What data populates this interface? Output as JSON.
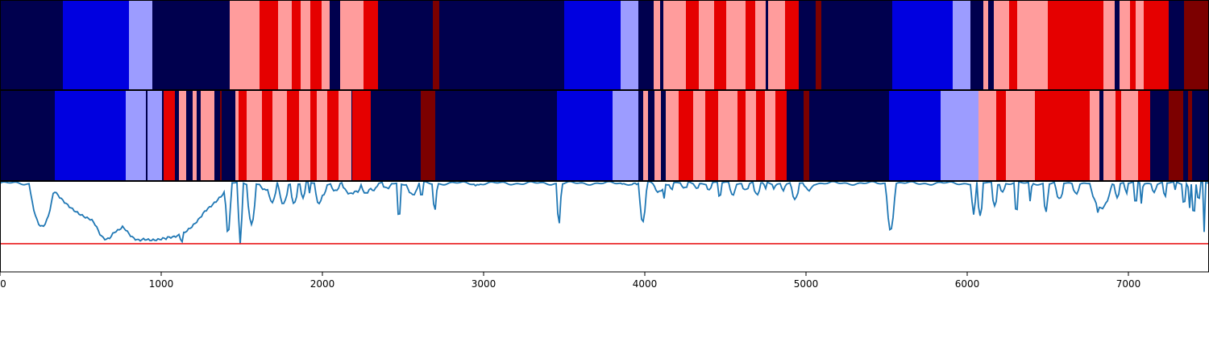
{
  "chart_data": [
    {
      "type": "heatmap",
      "xlim": [
        0,
        7500
      ],
      "segments": [
        {
          "start": 0,
          "end": 390,
          "class": "navy"
        },
        {
          "start": 390,
          "end": 800,
          "class": "blue"
        },
        {
          "start": 800,
          "end": 945,
          "class": "lightblue"
        },
        {
          "start": 945,
          "end": 1425,
          "class": "navy"
        },
        {
          "start": 1425,
          "end": 1610,
          "class": "pink"
        },
        {
          "start": 1610,
          "end": 1725,
          "class": "red"
        },
        {
          "start": 1725,
          "end": 1810,
          "class": "pink"
        },
        {
          "start": 1810,
          "end": 1865,
          "class": "red"
        },
        {
          "start": 1865,
          "end": 1925,
          "class": "pink"
        },
        {
          "start": 1925,
          "end": 1995,
          "class": "red"
        },
        {
          "start": 1995,
          "end": 2045,
          "class": "pink"
        },
        {
          "start": 2045,
          "end": 2110,
          "class": "navy"
        },
        {
          "start": 2110,
          "end": 2255,
          "class": "pink"
        },
        {
          "start": 2255,
          "end": 2345,
          "class": "red"
        },
        {
          "start": 2345,
          "end": 2685,
          "class": "navy"
        },
        {
          "start": 2685,
          "end": 2725,
          "class": "darkred"
        },
        {
          "start": 2725,
          "end": 3500,
          "class": "navy"
        },
        {
          "start": 3500,
          "end": 3850,
          "class": "blue"
        },
        {
          "start": 3850,
          "end": 3960,
          "class": "lightblue"
        },
        {
          "start": 3960,
          "end": 4055,
          "class": "navy"
        },
        {
          "start": 4055,
          "end": 4095,
          "class": "pink"
        },
        {
          "start": 4095,
          "end": 4115,
          "class": "navy"
        },
        {
          "start": 4115,
          "end": 4255,
          "class": "pink"
        },
        {
          "start": 4255,
          "end": 4335,
          "class": "red"
        },
        {
          "start": 4335,
          "end": 4430,
          "class": "pink"
        },
        {
          "start": 4430,
          "end": 4505,
          "class": "red"
        },
        {
          "start": 4505,
          "end": 4625,
          "class": "pink"
        },
        {
          "start": 4625,
          "end": 4685,
          "class": "red"
        },
        {
          "start": 4685,
          "end": 4750,
          "class": "pink"
        },
        {
          "start": 4750,
          "end": 4765,
          "class": "navy"
        },
        {
          "start": 4765,
          "end": 4870,
          "class": "pink"
        },
        {
          "start": 4870,
          "end": 4955,
          "class": "red"
        },
        {
          "start": 4955,
          "end": 5060,
          "class": "navy"
        },
        {
          "start": 5060,
          "end": 5095,
          "class": "darkred"
        },
        {
          "start": 5095,
          "end": 5535,
          "class": "navy"
        },
        {
          "start": 5535,
          "end": 5910,
          "class": "blue"
        },
        {
          "start": 5910,
          "end": 6020,
          "class": "lightblue"
        },
        {
          "start": 6020,
          "end": 6100,
          "class": "navy"
        },
        {
          "start": 6100,
          "end": 6130,
          "class": "pink"
        },
        {
          "start": 6130,
          "end": 6165,
          "class": "navy"
        },
        {
          "start": 6165,
          "end": 6260,
          "class": "pink"
        },
        {
          "start": 6260,
          "end": 6310,
          "class": "red"
        },
        {
          "start": 6310,
          "end": 6500,
          "class": "pink"
        },
        {
          "start": 6500,
          "end": 6845,
          "class": "red"
        },
        {
          "start": 6845,
          "end": 6915,
          "class": "pink"
        },
        {
          "start": 6915,
          "end": 6945,
          "class": "navy"
        },
        {
          "start": 6945,
          "end": 7010,
          "class": "pink"
        },
        {
          "start": 7010,
          "end": 7045,
          "class": "red"
        },
        {
          "start": 7045,
          "end": 7095,
          "class": "pink"
        },
        {
          "start": 7095,
          "end": 7250,
          "class": "red"
        },
        {
          "start": 7250,
          "end": 7345,
          "class": "navy"
        },
        {
          "start": 7345,
          "end": 7500,
          "class": "darkred"
        }
      ]
    },
    {
      "type": "heatmap",
      "xlim": [
        0,
        7500
      ],
      "segments": [
        {
          "start": 0,
          "end": 340,
          "class": "navy"
        },
        {
          "start": 340,
          "end": 780,
          "class": "blue"
        },
        {
          "start": 780,
          "end": 905,
          "class": "lightblue"
        },
        {
          "start": 905,
          "end": 915,
          "class": "navy"
        },
        {
          "start": 915,
          "end": 1005,
          "class": "lightblue"
        },
        {
          "start": 1005,
          "end": 1015,
          "class": "navy"
        },
        {
          "start": 1015,
          "end": 1085,
          "class": "red"
        },
        {
          "start": 1085,
          "end": 1110,
          "class": "navy"
        },
        {
          "start": 1110,
          "end": 1155,
          "class": "pink"
        },
        {
          "start": 1155,
          "end": 1195,
          "class": "navy"
        },
        {
          "start": 1195,
          "end": 1220,
          "class": "pink"
        },
        {
          "start": 1220,
          "end": 1245,
          "class": "navy"
        },
        {
          "start": 1245,
          "end": 1265,
          "class": "pink"
        },
        {
          "start": 1265,
          "end": 1330,
          "class": "pink"
        },
        {
          "start": 1330,
          "end": 1365,
          "class": "navy"
        },
        {
          "start": 1365,
          "end": 1375,
          "class": "darkred"
        },
        {
          "start": 1375,
          "end": 1450,
          "class": "navy"
        },
        {
          "start": 1450,
          "end": 1460,
          "class": "navy"
        },
        {
          "start": 1460,
          "end": 1480,
          "class": "pink"
        },
        {
          "start": 1480,
          "end": 1530,
          "class": "red"
        },
        {
          "start": 1530,
          "end": 1625,
          "class": "pink"
        },
        {
          "start": 1625,
          "end": 1690,
          "class": "red"
        },
        {
          "start": 1690,
          "end": 1780,
          "class": "pink"
        },
        {
          "start": 1780,
          "end": 1855,
          "class": "red"
        },
        {
          "start": 1855,
          "end": 1925,
          "class": "pink"
        },
        {
          "start": 1925,
          "end": 1965,
          "class": "red"
        },
        {
          "start": 1965,
          "end": 2030,
          "class": "pink"
        },
        {
          "start": 2030,
          "end": 2100,
          "class": "red"
        },
        {
          "start": 2100,
          "end": 2180,
          "class": "pink"
        },
        {
          "start": 2180,
          "end": 2185,
          "class": "navy"
        },
        {
          "start": 2185,
          "end": 2300,
          "class": "red"
        },
        {
          "start": 2300,
          "end": 2610,
          "class": "navy"
        },
        {
          "start": 2610,
          "end": 2700,
          "class": "darkred"
        },
        {
          "start": 2700,
          "end": 3455,
          "class": "navy"
        },
        {
          "start": 3455,
          "end": 3800,
          "class": "blue"
        },
        {
          "start": 3800,
          "end": 3960,
          "class": "lightblue"
        },
        {
          "start": 3960,
          "end": 3990,
          "class": "navy"
        },
        {
          "start": 3990,
          "end": 4020,
          "class": "pink"
        },
        {
          "start": 4020,
          "end": 4060,
          "class": "navy"
        },
        {
          "start": 4060,
          "end": 4100,
          "class": "pink"
        },
        {
          "start": 4100,
          "end": 4130,
          "class": "navy"
        },
        {
          "start": 4130,
          "end": 4210,
          "class": "pink"
        },
        {
          "start": 4210,
          "end": 4300,
          "class": "red"
        },
        {
          "start": 4300,
          "end": 4375,
          "class": "pink"
        },
        {
          "start": 4375,
          "end": 4455,
          "class": "red"
        },
        {
          "start": 4455,
          "end": 4575,
          "class": "pink"
        },
        {
          "start": 4575,
          "end": 4625,
          "class": "red"
        },
        {
          "start": 4625,
          "end": 4690,
          "class": "pink"
        },
        {
          "start": 4690,
          "end": 4745,
          "class": "red"
        },
        {
          "start": 4745,
          "end": 4810,
          "class": "pink"
        },
        {
          "start": 4810,
          "end": 4880,
          "class": "red"
        },
        {
          "start": 4880,
          "end": 4985,
          "class": "navy"
        },
        {
          "start": 4985,
          "end": 5020,
          "class": "darkred"
        },
        {
          "start": 5020,
          "end": 5515,
          "class": "navy"
        },
        {
          "start": 5515,
          "end": 5835,
          "class": "blue"
        },
        {
          "start": 5835,
          "end": 6070,
          "class": "lightblue"
        },
        {
          "start": 6070,
          "end": 6180,
          "class": "pink"
        },
        {
          "start": 6180,
          "end": 6240,
          "class": "red"
        },
        {
          "start": 6240,
          "end": 6420,
          "class": "pink"
        },
        {
          "start": 6420,
          "end": 6760,
          "class": "red"
        },
        {
          "start": 6760,
          "end": 6820,
          "class": "pink"
        },
        {
          "start": 6820,
          "end": 6845,
          "class": "navy"
        },
        {
          "start": 6845,
          "end": 6920,
          "class": "pink"
        },
        {
          "start": 6920,
          "end": 6955,
          "class": "red"
        },
        {
          "start": 6955,
          "end": 7060,
          "class": "pink"
        },
        {
          "start": 7060,
          "end": 7135,
          "class": "red"
        },
        {
          "start": 7135,
          "end": 7250,
          "class": "navy"
        },
        {
          "start": 7250,
          "end": 7340,
          "class": "darkred"
        },
        {
          "start": 7340,
          "end": 7370,
          "class": "navy"
        },
        {
          "start": 7370,
          "end": 7395,
          "class": "darkred"
        },
        {
          "start": 7395,
          "end": 7500,
          "class": "navy"
        }
      ]
    },
    {
      "type": "line",
      "xlim": [
        0,
        7500
      ],
      "ylim": [
        0,
        1
      ],
      "threshold": 0.31,
      "x_ticks": [
        0,
        1000,
        2000,
        3000,
        4000,
        5000,
        6000,
        7000
      ],
      "x_tick_labels": [
        "0",
        "1000",
        "2000",
        "3000",
        "4000",
        "5000",
        "6000",
        "7000"
      ],
      "baseline": 0.975,
      "dips": [
        [
          180,
          340,
          0.5,
          15
        ],
        [
          530,
          790,
          0.36,
          40
        ],
        [
          790,
          900,
          0.45,
          8
        ],
        [
          830,
          300,
          0.82,
          20
        ],
        [
          905,
          460,
          0.43,
          30
        ],
        [
          980,
          1070,
          0.36,
          30
        ],
        [
          1005,
          300,
          0.55,
          25
        ],
        [
          1060,
          670,
          0.35,
          25
        ],
        [
          1095,
          1160,
          0.33,
          15
        ],
        [
          1130,
          750,
          0.45,
          20
        ],
        [
          1190,
          870,
          0.53,
          20
        ],
        [
          1230,
          570,
          0.45,
          15
        ],
        [
          1290,
          650,
          0.45,
          15
        ],
        [
          1330,
          560,
          0.35,
          15
        ],
        [
          1370,
          720,
          0.38,
          15
        ],
        [
          1400,
          1430,
          0.42,
          20
        ],
        [
          1440,
          600,
          0.5,
          15
        ],
        [
          1475,
          1505,
          0.3,
          10
        ],
        [
          1530,
          1590,
          0.53,
          8
        ],
        [
          1610,
          1680,
          0.9,
          8
        ],
        [
          1655,
          1720,
          0.77,
          8
        ],
        [
          1725,
          1790,
          0.75,
          8
        ],
        [
          1800,
          1850,
          0.75,
          8
        ],
        [
          1860,
          1900,
          0.82,
          8
        ],
        [
          1910,
          1930,
          0.86,
          8
        ],
        [
          1950,
          2010,
          0.75,
          8
        ],
        [
          1990,
          2030,
          0.85,
          6
        ],
        [
          2050,
          2110,
          0.89,
          8
        ],
        [
          2120,
          2230,
          0.86,
          8
        ],
        [
          2180,
          2245,
          0.88,
          6
        ],
        [
          2240,
          2300,
          0.86,
          6
        ],
        [
          2275,
          2350,
          0.9,
          8
        ],
        [
          2370,
          2430,
          0.92,
          10
        ],
        [
          2460,
          2490,
          0.6,
          12
        ],
        [
          2520,
          2600,
          0.85,
          8
        ],
        [
          2610,
          2620,
          0.8,
          10
        ],
        [
          2700,
          2695,
          0.68,
          15
        ],
        [
          2940,
          2975,
          0.95,
          20
        ],
        [
          3460,
          3475,
          0.52,
          15
        ],
        [
          3850,
          3980,
          0.97,
          25
        ],
        [
          3975,
          4000,
          0.55,
          25
        ],
        [
          4050,
          4125,
          0.88,
          8
        ],
        [
          4110,
          4130,
          0.8,
          8
        ],
        [
          4160,
          4170,
          0.88,
          8
        ],
        [
          4225,
          4270,
          0.92,
          8
        ],
        [
          4300,
          4340,
          0.92,
          8
        ],
        [
          4380,
          4420,
          0.9,
          8
        ],
        [
          4450,
          4480,
          0.82,
          8
        ],
        [
          4520,
          4570,
          0.85,
          8
        ],
        [
          4600,
          4650,
          0.9,
          8
        ],
        [
          4670,
          4720,
          0.85,
          8
        ],
        [
          4740,
          4755,
          0.9,
          8
        ],
        [
          4790,
          4815,
          0.92,
          8
        ],
        [
          4840,
          4875,
          0.9,
          8
        ],
        [
          4905,
          4960,
          0.8,
          8
        ],
        [
          4985,
          5050,
          0.9,
          8
        ],
        [
          5515,
          5535,
          0.46,
          30
        ],
        [
          6030,
          6050,
          0.62,
          15
        ],
        [
          6060,
          6100,
          0.62,
          15
        ],
        [
          6150,
          6190,
          0.72,
          8
        ],
        [
          6200,
          6240,
          0.88,
          8
        ],
        [
          6290,
          6320,
          0.66,
          8
        ],
        [
          6390,
          6395,
          0.75,
          8
        ],
        [
          6470,
          6505,
          0.66,
          8
        ],
        [
          6545,
          6600,
          0.8,
          8
        ],
        [
          6650,
          6700,
          0.86,
          8
        ],
        [
          6760,
          6900,
          0.7,
          8
        ],
        [
          6795,
          6820,
          0.65,
          8
        ],
        [
          6830,
          6870,
          0.87,
          8
        ],
        [
          6910,
          6950,
          0.82,
          8
        ],
        [
          6975,
          7000,
          0.86,
          8
        ],
        [
          7040,
          7050,
          0.65,
          8
        ],
        [
          7080,
          7085,
          0.72,
          8
        ],
        [
          7140,
          7180,
          0.88,
          8
        ],
        [
          7215,
          7240,
          0.82,
          8
        ],
        [
          7280,
          7300,
          0.9,
          8
        ],
        [
          7340,
          7350,
          0.65,
          8
        ],
        [
          7370,
          7385,
          0.68,
          8
        ],
        [
          7395,
          7415,
          0.58,
          8
        ],
        [
          7430,
          7440,
          0.72,
          8
        ],
        [
          7460,
          7480,
          0.45,
          8
        ]
      ],
      "series_color": "#1f77b4",
      "threshold_color": "#e8191c"
    }
  ],
  "colors": {
    "navy": "#00004e",
    "blue": "#0000e0",
    "lightblue": "#9c9cff",
    "pink": "#ff9c9c",
    "red": "#e50000",
    "darkred": "#7c0000"
  }
}
